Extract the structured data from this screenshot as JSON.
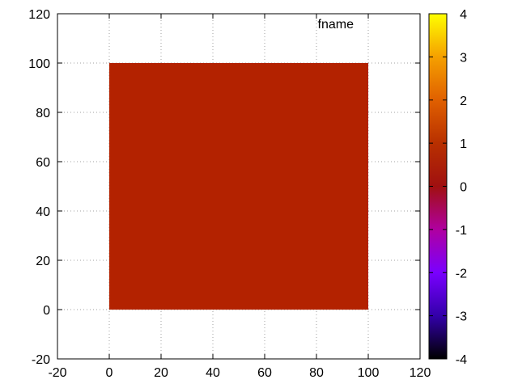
{
  "chart_data": {
    "type": "heatmap",
    "title": "",
    "xlabel": "",
    "ylabel": "",
    "xlim": [
      -20,
      120
    ],
    "ylim": [
      -20,
      120
    ],
    "xticks": [
      "-20",
      "0",
      "20",
      "40",
      "60",
      "80",
      "100",
      "120"
    ],
    "yticks": [
      "-20",
      "0",
      "20",
      "40",
      "60",
      "80",
      "100",
      "120"
    ],
    "grid": true,
    "legend": {
      "position": "top-right",
      "entries": [
        "fname"
      ]
    },
    "cells": [
      {
        "x": [
          0,
          100
        ],
        "y": [
          0,
          100
        ],
        "value": 0.9,
        "color": "#b32200"
      }
    ],
    "colorbar": {
      "range": [
        -4,
        4
      ],
      "ticks": [
        "4",
        "3",
        "2",
        "1",
        "0",
        "-1",
        "-2",
        "-3",
        "-4"
      ],
      "palette": [
        "#000000",
        "#3300aa",
        "#7a00ff",
        "#b000a0",
        "#a01010",
        "#b83000",
        "#e06000",
        "#f5a000",
        "#ffff00"
      ]
    }
  }
}
